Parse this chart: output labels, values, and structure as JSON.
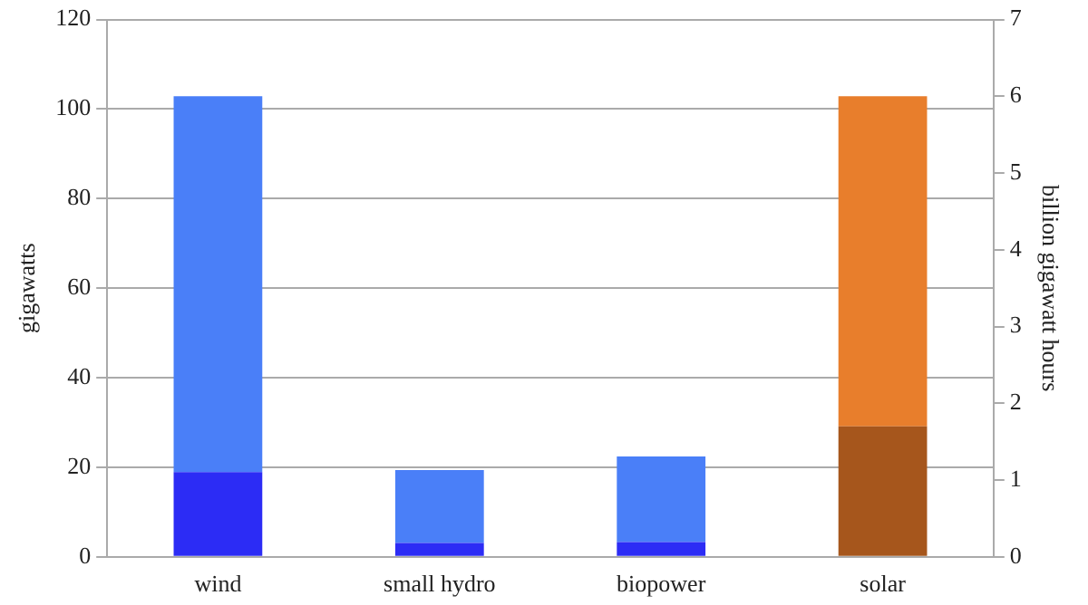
{
  "chart_data": {
    "type": "bar",
    "categories": [
      "wind",
      "small hydro",
      "biopower",
      "solar"
    ],
    "ylabel": "gigawatts",
    "y2label": "billion gigawatt hours",
    "ylim": [
      0,
      120
    ],
    "yticks": [
      0,
      20,
      40,
      60,
      80,
      100,
      120
    ],
    "y2lim": [
      0,
      7
    ],
    "y2ticks": [
      0,
      1,
      2,
      3,
      4,
      5,
      6,
      7
    ],
    "grid": "y",
    "stacked": true,
    "series": [
      {
        "color": "#2c2cf5",
        "values": [
          18.9,
          3.1,
          3.3,
          null
        ]
      },
      {
        "color": "#4a7ff8",
        "values": [
          84.0,
          16.3,
          19.1,
          null
        ]
      },
      {
        "color": "#a6561c",
        "axis": "y2",
        "values": [
          null,
          null,
          null,
          1.7
        ]
      },
      {
        "color": "#e87e2c",
        "axis": "y2",
        "values": [
          null,
          null,
          null,
          4.3
        ]
      }
    ]
  }
}
